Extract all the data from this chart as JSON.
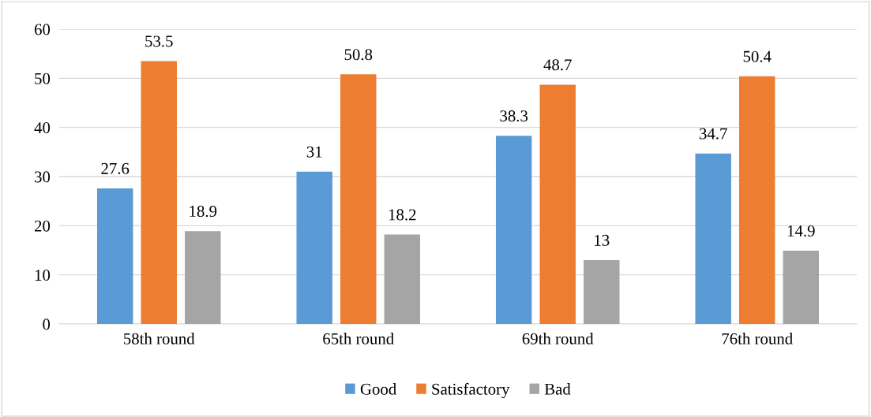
{
  "chart_data": {
    "type": "bar",
    "categories": [
      "58th round",
      "65th round",
      "69th round",
      "76th round"
    ],
    "series": [
      {
        "name": "Good",
        "color": "#5b9bd5",
        "values": [
          27.6,
          31,
          38.3,
          34.7
        ]
      },
      {
        "name": "Satisfactory",
        "color": "#ed7d31",
        "values": [
          53.5,
          50.8,
          48.7,
          50.4
        ]
      },
      {
        "name": "Bad",
        "color": "#a5a5a5",
        "values": [
          18.9,
          18.2,
          13,
          14.9
        ]
      }
    ],
    "ylim": [
      0,
      60
    ],
    "yticks": [
      0,
      10,
      20,
      30,
      40,
      50,
      60
    ],
    "grid": "y",
    "legend": "bottom",
    "data_labels": true
  }
}
